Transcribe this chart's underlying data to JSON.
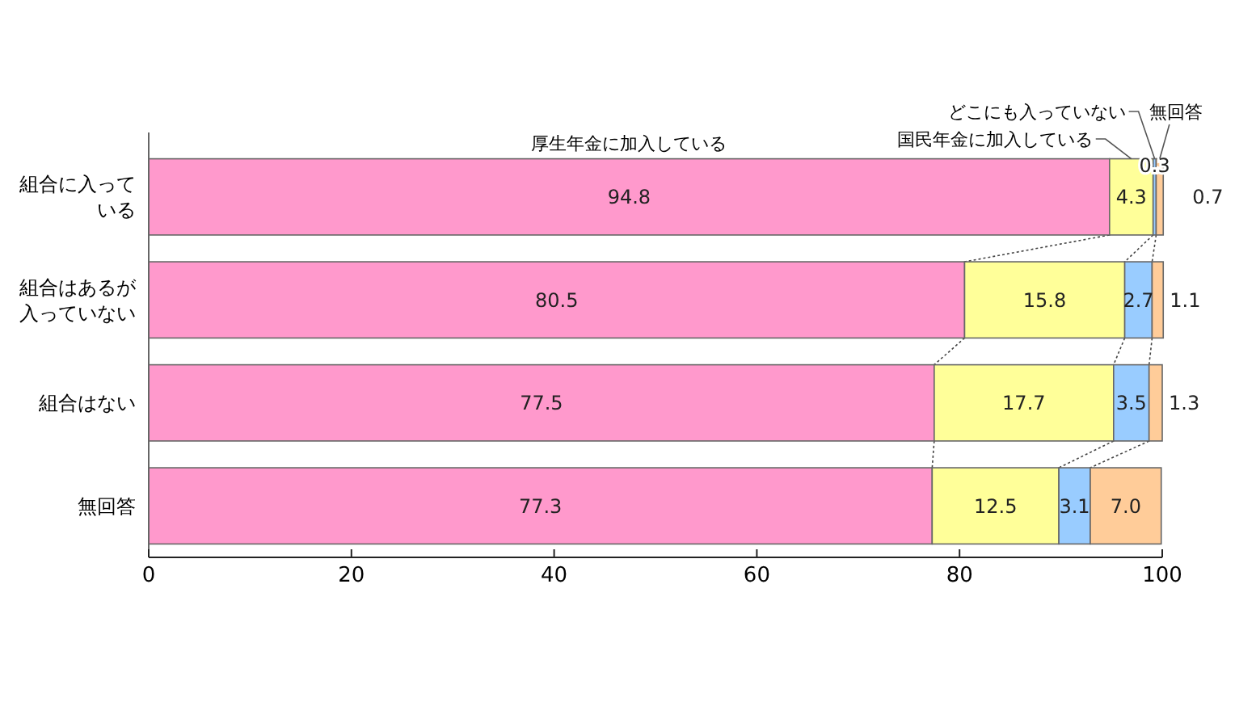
{
  "chart_data": {
    "type": "bar",
    "orientation": "horizontal",
    "stacked": true,
    "categories": [
      "組合に入っている",
      "組合はあるが入っていない",
      "組合はない",
      "無回答"
    ],
    "series": [
      {
        "name": "厚生年金に加入している",
        "color": "#ff99cc",
        "values": [
          94.8,
          80.5,
          77.5,
          77.3
        ],
        "value_labels": [
          "94.8",
          "80.5",
          "77.5",
          "77.3"
        ]
      },
      {
        "name": "国民年金に加入している",
        "color": "#ffff99",
        "values": [
          4.3,
          15.8,
          17.7,
          12.5
        ],
        "value_labels": [
          "4.3",
          "15.8",
          "17.7",
          "12.5"
        ]
      },
      {
        "name": "どこにも入っていない",
        "color": "#99ccff",
        "values": [
          0.3,
          2.7,
          3.5,
          3.1
        ],
        "value_labels": [
          "0.3",
          "2.7",
          "3.5",
          "3.1"
        ]
      },
      {
        "name": "無回答",
        "color": "#ffcc99",
        "values": [
          0.7,
          1.1,
          1.3,
          7.0
        ],
        "value_labels": [
          "0.7",
          "1.1",
          "1.3",
          "7.0"
        ]
      }
    ],
    "xlim": [
      0,
      100
    ],
    "xticks": [
      0,
      20,
      40,
      60,
      80,
      100
    ],
    "grid": false
  }
}
